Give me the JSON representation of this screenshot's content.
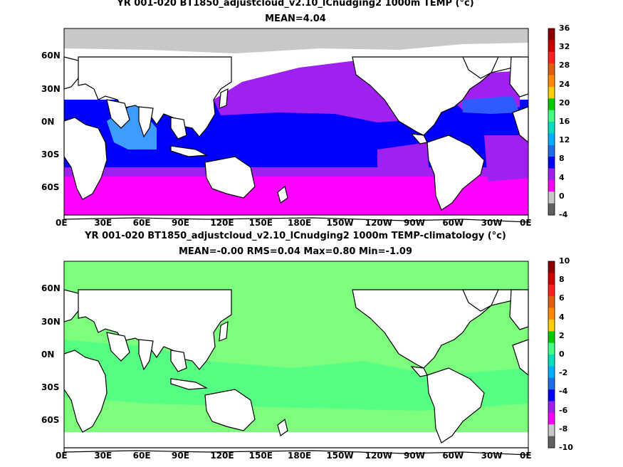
{
  "panels": [
    {
      "title_line1": "YR 001-020 BT1850_adjustcloud_v2.10_lCnudging2 1000m TEMP (°c)",
      "title_line2": "MEAN=4.04",
      "colorbar_labels": [
        "36",
        "32",
        "28",
        "24",
        "20",
        "16",
        "12",
        "8",
        "4",
        "0",
        "-4"
      ]
    },
    {
      "title_line1": "YR 001-020 BT1850_adjustcloud_v2.10_lCnudging2 1000m TEMP-climatology (°c)",
      "title_line2": "MEAN=-0.00   RMS=0.04   Max=0.80   Min=-1.09",
      "colorbar_labels": [
        "10",
        "8",
        "6",
        "4",
        "2",
        "0",
        "-2",
        "-4",
        "-6",
        "-8",
        "-10"
      ]
    }
  ],
  "lon_ticks": [
    "0E",
    "30E",
    "60E",
    "90E",
    "120E",
    "150E",
    "180E",
    "150W",
    "120W",
    "90W",
    "60W",
    "30W",
    "0E"
  ],
  "lat_ticks": [
    "60N",
    "30N",
    "0N",
    "30S",
    "60S"
  ],
  "colors": {
    "land": "#ffffff",
    "ice": "#c8c8c8",
    "magenta": "#ff00ff",
    "purple": "#a020f0",
    "blue": "#0000ff",
    "mid_blue": "#2e5bff",
    "light_blue": "#3c9cff",
    "anomaly_light_green": "#7dff7d",
    "anomaly_green": "#44ff44"
  },
  "colorbar_colors": [
    "#8b0000",
    "#cc0000",
    "#ff2020",
    "#e06010",
    "#ff8c00",
    "#ffd000",
    "#00cc00",
    "#44ff88",
    "#00e0c0",
    "#00b0ff",
    "#1e6ee8",
    "#0000ff",
    "#a020f0",
    "#ff00ff",
    "#c8c8c8",
    "#606060"
  ]
}
